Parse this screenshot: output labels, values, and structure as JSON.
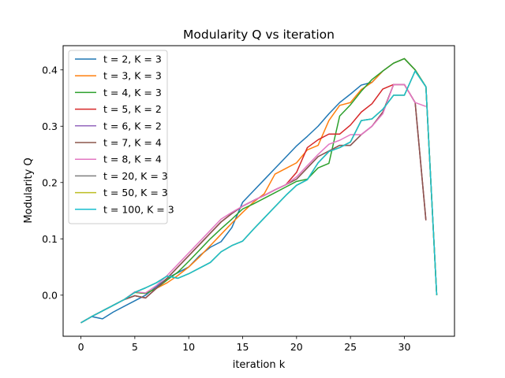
{
  "chart_data": {
    "type": "line",
    "title": "Modularity Q vs iteration",
    "xlabel": "iteration k",
    "ylabel": "Modularity Q",
    "xlim": [
      -1.65,
      34.65
    ],
    "ylim": [
      -0.073,
      0.443
    ],
    "xticks": [
      0,
      5,
      10,
      15,
      20,
      25,
      30
    ],
    "yticks": [
      0.0,
      0.1,
      0.2,
      0.3,
      0.4
    ],
    "ytick_labels": [
      "0.0",
      "0.1",
      "0.2",
      "0.3",
      "0.4"
    ],
    "grid": false,
    "legend_position": "top-left",
    "series": [
      {
        "name": "t = 2, K = 3",
        "color": "#1f77b4",
        "x": [
          0,
          1,
          2,
          3,
          4,
          5,
          6,
          7,
          8,
          9,
          10,
          11,
          12,
          13,
          14,
          15,
          16,
          17,
          18,
          19,
          20,
          21,
          22,
          23,
          24,
          25,
          26,
          27,
          28,
          29,
          30,
          31,
          32,
          33
        ],
        "y": [
          -0.049,
          -0.038,
          -0.042,
          -0.03,
          -0.02,
          -0.01,
          0.0,
          0.015,
          0.03,
          0.04,
          0.05,
          0.07,
          0.085,
          0.095,
          0.12,
          0.165,
          0.185,
          0.205,
          0.225,
          0.245,
          0.265,
          0.282,
          0.3,
          0.322,
          0.342,
          0.357,
          0.373,
          0.378,
          0.398,
          0.412,
          0.42,
          0.4,
          0.37,
          0.0
        ]
      },
      {
        "name": "t = 3, K = 3",
        "color": "#ff7f0e",
        "x": [
          0,
          1,
          2,
          3,
          4,
          5,
          6,
          7,
          8,
          9,
          10,
          11,
          12,
          13,
          14,
          15,
          16,
          17,
          18,
          19,
          20,
          21,
          22,
          23,
          24,
          25,
          26,
          27,
          28,
          29,
          30,
          31,
          32,
          33
        ],
        "y": [
          -0.049,
          -0.038,
          -0.028,
          -0.018,
          -0.008,
          0.005,
          0.003,
          0.012,
          0.022,
          0.035,
          0.05,
          0.068,
          0.088,
          0.108,
          0.128,
          0.147,
          0.165,
          0.18,
          0.215,
          0.225,
          0.235,
          0.258,
          0.266,
          0.31,
          0.337,
          0.342,
          0.365,
          0.378,
          0.398,
          0.412,
          0.42,
          0.4,
          0.37,
          0.0
        ]
      },
      {
        "name": "t = 4, K = 3",
        "color": "#2ca02c",
        "x": [
          0,
          1,
          2,
          3,
          4,
          5,
          6,
          7,
          8,
          9,
          10,
          11,
          12,
          13,
          14,
          15,
          16,
          17,
          18,
          19,
          20,
          21,
          22,
          23,
          24,
          25,
          26,
          27,
          28,
          29,
          30,
          31,
          32,
          33
        ],
        "y": [
          -0.049,
          -0.038,
          -0.028,
          -0.018,
          -0.008,
          0.005,
          0.003,
          0.012,
          0.027,
          0.041,
          0.06,
          0.08,
          0.1,
          0.118,
          0.135,
          0.153,
          0.162,
          0.172,
          0.182,
          0.192,
          0.202,
          0.206,
          0.226,
          0.234,
          0.318,
          0.338,
          0.362,
          0.383,
          0.398,
          0.412,
          0.42,
          0.4,
          0.37,
          0.0
        ]
      },
      {
        "name": "t = 5, K = 2",
        "color": "#d62728",
        "x": [
          0,
          1,
          2,
          3,
          4,
          5,
          6,
          7,
          8,
          9,
          10,
          11,
          12,
          13,
          14,
          15,
          16,
          17,
          18,
          19,
          20,
          21,
          22,
          23,
          24,
          25,
          26,
          27,
          28,
          29,
          30,
          31,
          32
        ],
        "y": [
          -0.049,
          -0.038,
          -0.028,
          -0.018,
          -0.008,
          -0.001,
          -0.005,
          0.012,
          0.03,
          0.05,
          0.07,
          0.09,
          0.11,
          0.13,
          0.145,
          0.158,
          0.168,
          0.177,
          0.187,
          0.196,
          0.218,
          0.262,
          0.276,
          0.286,
          0.286,
          0.302,
          0.325,
          0.34,
          0.366,
          0.374,
          0.374,
          0.342,
          0.133
        ]
      },
      {
        "name": "t = 6, K = 2",
        "color": "#9467bd",
        "x": [
          0,
          1,
          2,
          3,
          4,
          5,
          6,
          7,
          8,
          9,
          10,
          11,
          12,
          13,
          14,
          15,
          16,
          17,
          18,
          19,
          20,
          21,
          22,
          23,
          24,
          25,
          26,
          27,
          28,
          29,
          30,
          31,
          32
        ],
        "y": [
          -0.049,
          -0.038,
          -0.028,
          -0.018,
          -0.008,
          -0.001,
          -0.005,
          0.012,
          0.03,
          0.05,
          0.07,
          0.09,
          0.11,
          0.13,
          0.145,
          0.158,
          0.168,
          0.177,
          0.187,
          0.196,
          0.206,
          0.226,
          0.246,
          0.256,
          0.266,
          0.266,
          0.285,
          0.3,
          0.325,
          0.374,
          0.374,
          0.342,
          0.133
        ]
      },
      {
        "name": "t = 7, K = 4",
        "color": "#8c564b",
        "x": [
          0,
          1,
          2,
          3,
          4,
          5,
          6,
          7,
          8,
          9,
          10,
          11,
          12,
          13,
          14,
          15,
          16,
          17,
          18,
          19,
          20,
          21,
          22,
          23,
          24,
          25,
          26,
          27,
          28,
          29,
          30,
          31,
          32
        ],
        "y": [
          -0.049,
          -0.038,
          -0.028,
          -0.018,
          -0.008,
          -0.001,
          -0.005,
          0.012,
          0.03,
          0.05,
          0.07,
          0.09,
          0.11,
          0.13,
          0.145,
          0.158,
          0.168,
          0.177,
          0.187,
          0.196,
          0.206,
          0.226,
          0.246,
          0.256,
          0.266,
          0.266,
          0.285,
          0.3,
          0.325,
          0.374,
          0.374,
          0.342,
          0.133
        ]
      },
      {
        "name": "t = 8, K = 4",
        "color": "#e377c2",
        "x": [
          0,
          1,
          2,
          3,
          4,
          5,
          6,
          7,
          8,
          9,
          10,
          11,
          12,
          13,
          14,
          15,
          16,
          17,
          18,
          19,
          20,
          21,
          22,
          23,
          24,
          25,
          26,
          27,
          28,
          29,
          30,
          31,
          32
        ],
        "y": [
          -0.049,
          -0.038,
          -0.028,
          -0.018,
          -0.008,
          0.006,
          0.004,
          0.017,
          0.035,
          0.055,
          0.075,
          0.095,
          0.115,
          0.135,
          0.147,
          0.158,
          0.168,
          0.177,
          0.187,
          0.196,
          0.21,
          0.23,
          0.25,
          0.268,
          0.275,
          0.285,
          0.285,
          0.3,
          0.322,
          0.374,
          0.374,
          0.342,
          0.335
        ]
      },
      {
        "name": "t = 20, K = 3",
        "color": "#7f7f7f",
        "x": [
          0,
          1,
          2,
          3,
          4,
          5,
          6,
          7,
          8,
          9,
          10,
          11,
          12,
          13,
          14,
          15,
          16,
          17,
          18,
          19,
          20,
          21,
          22,
          23,
          24,
          25,
          26,
          27,
          28,
          29,
          30,
          31,
          32,
          33
        ],
        "y": [
          -0.049,
          -0.038,
          -0.028,
          -0.018,
          -0.008,
          0.005,
          0.013,
          0.022,
          0.034,
          0.03,
          0.038,
          0.048,
          0.058,
          0.077,
          0.088,
          0.096,
          0.117,
          0.137,
          0.157,
          0.177,
          0.195,
          0.205,
          0.235,
          0.255,
          0.262,
          0.272,
          0.31,
          0.313,
          0.33,
          0.355,
          0.355,
          0.398,
          0.37,
          0.0
        ]
      },
      {
        "name": "t = 50, K = 3",
        "color": "#bcbd22",
        "x": [
          0,
          1,
          2,
          3,
          4,
          5,
          6,
          7,
          8,
          9,
          10,
          11,
          12,
          13,
          14,
          15,
          16,
          17,
          18,
          19,
          20,
          21,
          22,
          23,
          24,
          25,
          26,
          27,
          28,
          29,
          30,
          31,
          32,
          33
        ],
        "y": [
          -0.049,
          -0.038,
          -0.028,
          -0.018,
          -0.008,
          0.005,
          0.013,
          0.022,
          0.034,
          0.03,
          0.038,
          0.048,
          0.058,
          0.077,
          0.088,
          0.096,
          0.117,
          0.137,
          0.157,
          0.177,
          0.195,
          0.205,
          0.235,
          0.255,
          0.262,
          0.272,
          0.31,
          0.313,
          0.33,
          0.355,
          0.355,
          0.398,
          0.37,
          0.0
        ]
      },
      {
        "name": "t = 100, K = 3",
        "color": "#17becf",
        "x": [
          0,
          1,
          2,
          3,
          4,
          5,
          6,
          7,
          8,
          9,
          10,
          11,
          12,
          13,
          14,
          15,
          16,
          17,
          18,
          19,
          20,
          21,
          22,
          23,
          24,
          25,
          26,
          27,
          28,
          29,
          30,
          31,
          32,
          33
        ],
        "y": [
          -0.049,
          -0.038,
          -0.028,
          -0.018,
          -0.008,
          0.005,
          0.013,
          0.022,
          0.034,
          0.03,
          0.038,
          0.048,
          0.058,
          0.077,
          0.088,
          0.096,
          0.117,
          0.137,
          0.157,
          0.177,
          0.195,
          0.205,
          0.235,
          0.255,
          0.262,
          0.272,
          0.31,
          0.313,
          0.33,
          0.355,
          0.355,
          0.398,
          0.37,
          0.0
        ]
      }
    ]
  }
}
